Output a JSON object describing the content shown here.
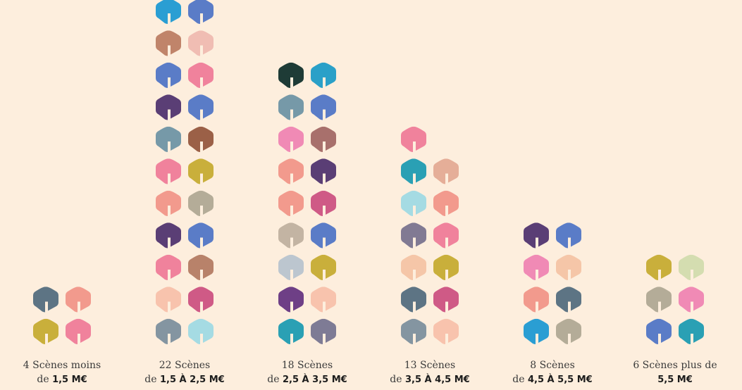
{
  "chart_data": {
    "type": "pictogram",
    "categories": [
      {
        "line1": "4 Scènes moins",
        "prefix": "de",
        "range": "1,5 M€",
        "value": 4,
        "colors": [
          "#5d7484",
          "#f29a8d",
          "#c9af3b",
          "#f0829c"
        ]
      },
      {
        "line1": "22 Scènes",
        "prefix": "de",
        "range": "1,5 À 2,5 M€",
        "value": 22,
        "colors": [
          "#2a9ed3",
          "#5a7cc7",
          "#c0846a",
          "#f0bdb3",
          "#5a7cc7",
          "#f0829c",
          "#5a3e75",
          "#5a7cc7",
          "#7699a8",
          "#9b6047",
          "#f0829c",
          "#c9af3b",
          "#f29a8d",
          "#b4ac98",
          "#5a3e75",
          "#5a7cc7",
          "#f0829c",
          "#b8826a",
          "#f8c3ad",
          "#cf5a86",
          "#8495a1",
          "#a5dbe3"
        ]
      },
      {
        "line1": "18 Scènes",
        "prefix": "de",
        "range": "2,5 À 3,5 M€",
        "value": 18,
        "colors": [
          "#1e3b36",
          "#2aa0c8",
          "#7699a8",
          "#5a7cc7",
          "#f08ab5",
          "#a8706c",
          "#f29a8d",
          "#5a3e75",
          "#f29a8d",
          "#cf5a86",
          "#c3b4a3",
          "#5a7cc7",
          "#bcc6cf",
          "#c9af3b",
          "#6e3f86",
          "#f8c3ad",
          "#2aa0b4",
          "#7e7b95"
        ]
      },
      {
        "line1": "13 Scènes",
        "prefix": "de",
        "range": "3,5 À 4,5 M€",
        "value": 13,
        "colors": [
          "#f0829c",
          "#2aa0b4",
          "#e5ae98",
          "#a5dbe3",
          "#f29a8d",
          "#817a93",
          "#f0829c",
          "#f5c6a8",
          "#c9af3b",
          "#5d7484",
          "#cf5a86",
          "#8495a1",
          "#f8c3ad"
        ]
      },
      {
        "line1": "8 Scènes",
        "prefix": "de",
        "range": "4,5 À 5,5 M€",
        "value": 8,
        "colors": [
          "#5a3e75",
          "#5a7cc7",
          "#f08ab5",
          "#f5c6a8",
          "#f29a8d",
          "#5d7484",
          "#2a9ed3",
          "#b4ac98"
        ]
      },
      {
        "line1": "6 Scènes plus de",
        "prefix": "",
        "range": "5,5 M€",
        "value": 6,
        "colors": [
          "#c9af3b",
          "#d4ddb0",
          "#b4ac98",
          "#f08ab5",
          "#5a7cc7",
          "#2aa0b4"
        ]
      }
    ]
  }
}
